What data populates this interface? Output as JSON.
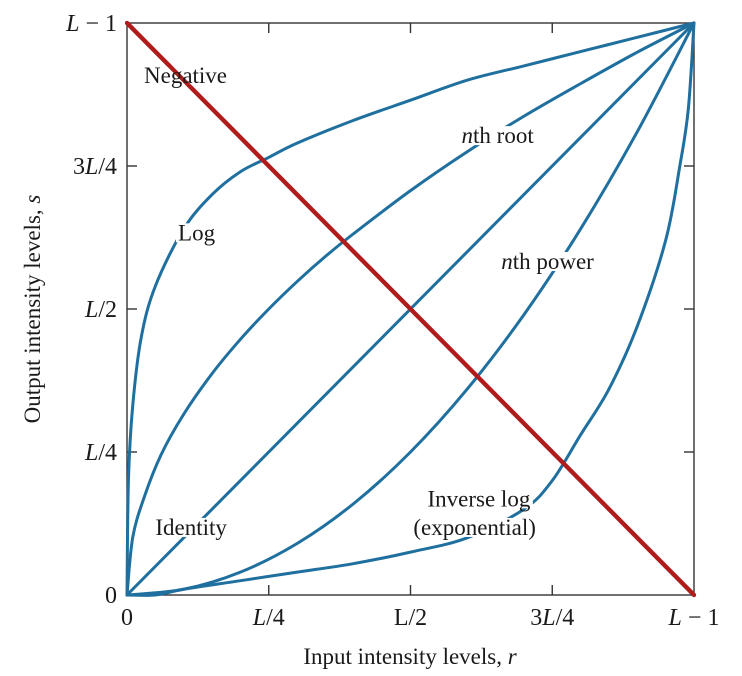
{
  "chart_data": {
    "type": "line",
    "title": "",
    "xlabel": "Input intensity levels, ",
    "xlabel_var": "r",
    "ylabel": "Output intensity levels, ",
    "ylabel_var": "s",
    "xlim": [
      0,
      1
    ],
    "ylim": [
      0,
      1
    ],
    "grid": false,
    "x_ticks": [
      {
        "value": 0,
        "parts": [
          {
            "t": "0",
            "it": false
          }
        ]
      },
      {
        "value": 0.25,
        "parts": [
          {
            "t": "L",
            "it": true
          },
          {
            "t": "/4",
            "it": false
          }
        ]
      },
      {
        "value": 0.5,
        "parts": [
          {
            "t": "L/2",
            "it": false
          }
        ]
      },
      {
        "value": 0.75,
        "parts": [
          {
            "t": "3",
            "it": false
          },
          {
            "t": "L",
            "it": true
          },
          {
            "t": "/4",
            "it": false
          }
        ]
      },
      {
        "value": 1,
        "parts": [
          {
            "t": "L",
            "it": true
          },
          {
            "t": " − 1",
            "it": false
          }
        ]
      }
    ],
    "y_ticks": [
      {
        "value": 0,
        "parts": [
          {
            "t": "0",
            "it": false
          }
        ]
      },
      {
        "value": 0.25,
        "parts": [
          {
            "t": "L",
            "it": true
          },
          {
            "t": "/4",
            "it": false
          }
        ]
      },
      {
        "value": 0.5,
        "parts": [
          {
            "t": "L",
            "it": true
          },
          {
            "t": "/2",
            "it": false
          }
        ]
      },
      {
        "value": 0.75,
        "parts": [
          {
            "t": "3",
            "it": false
          },
          {
            "t": "L",
            "it": true
          },
          {
            "t": "/4",
            "it": false
          }
        ]
      },
      {
        "value": 1,
        "parts": [
          {
            "t": "L",
            "it": true
          },
          {
            "t": " − 1",
            "it": false
          }
        ]
      }
    ],
    "series": [
      {
        "name": "Log",
        "color": "#1f6f9f",
        "x": [
          0,
          0.0025,
          0.01,
          0.025,
          0.05,
          0.1,
          0.15,
          0.2,
          0.25,
          0.3,
          0.4,
          0.5,
          0.6,
          0.7,
          0.8,
          0.9,
          1.0
        ],
        "y": [
          0,
          0.2,
          0.33,
          0.45,
          0.54,
          0.64,
          0.7,
          0.74,
          0.765,
          0.79,
          0.83,
          0.865,
          0.9,
          0.925,
          0.95,
          0.975,
          1.0
        ]
      },
      {
        "name": "nth root",
        "color": "#1f6f9f",
        "x": [
          0,
          0.01,
          0.03,
          0.06,
          0.1,
          0.15,
          0.2,
          0.25,
          0.3,
          0.35,
          0.4,
          0.5,
          0.6,
          0.7,
          0.8,
          0.9,
          1.0
        ],
        "y": [
          0,
          0.1,
          0.17,
          0.245,
          0.316,
          0.387,
          0.447,
          0.5,
          0.548,
          0.592,
          0.632,
          0.707,
          0.775,
          0.837,
          0.894,
          0.949,
          1.0
        ]
      },
      {
        "name": "Identity",
        "color": "#1f6f9f",
        "x": [
          0,
          1
        ],
        "y": [
          0,
          1
        ]
      },
      {
        "name": "nth power",
        "color": "#1f6f9f",
        "x": [
          0,
          0.1,
          0.2,
          0.3,
          0.4,
          0.5,
          0.6,
          0.7,
          0.8,
          0.9,
          1.0
        ],
        "y": [
          0,
          0.01,
          0.04,
          0.09,
          0.16,
          0.25,
          0.36,
          0.49,
          0.64,
          0.81,
          1.0
        ]
      },
      {
        "name": "Inverse log (exponential)",
        "color": "#1f6f9f",
        "x": [
          0,
          0.05,
          0.1,
          0.2,
          0.3,
          0.4,
          0.5,
          0.6,
          0.7,
          0.75,
          0.8,
          0.85,
          0.9,
          0.95,
          0.975,
          0.99,
          1.0
        ],
        "y": [
          0,
          0.0,
          0.01,
          0.025,
          0.04,
          0.055,
          0.075,
          0.1,
          0.15,
          0.2,
          0.28,
          0.36,
          0.47,
          0.62,
          0.75,
          0.85,
          1.0
        ]
      },
      {
        "name": "Negative",
        "color": "#b01c1c",
        "x": [
          0,
          1
        ],
        "y": [
          1,
          0
        ]
      }
    ],
    "annotations": [
      {
        "text": "Negative",
        "x": 0.03,
        "y": 0.895,
        "anchor": "start"
      },
      {
        "text": "Log",
        "x": 0.09,
        "y": 0.62,
        "anchor": "start"
      },
      {
        "text": "nth root",
        "x": 0.59,
        "y": 0.79,
        "anchor": "start",
        "italic_prefix": "n"
      },
      {
        "text": "nth power",
        "x": 0.66,
        "y": 0.57,
        "anchor": "start",
        "italic_prefix": "n"
      },
      {
        "text": "Identity",
        "x": 0.05,
        "y": 0.105,
        "anchor": "start"
      },
      {
        "text": "Inverse log",
        "x": 0.53,
        "y": 0.155,
        "anchor": "start"
      },
      {
        "text": "(exponential)",
        "x": 0.505,
        "y": 0.105,
        "anchor": "start"
      }
    ]
  }
}
